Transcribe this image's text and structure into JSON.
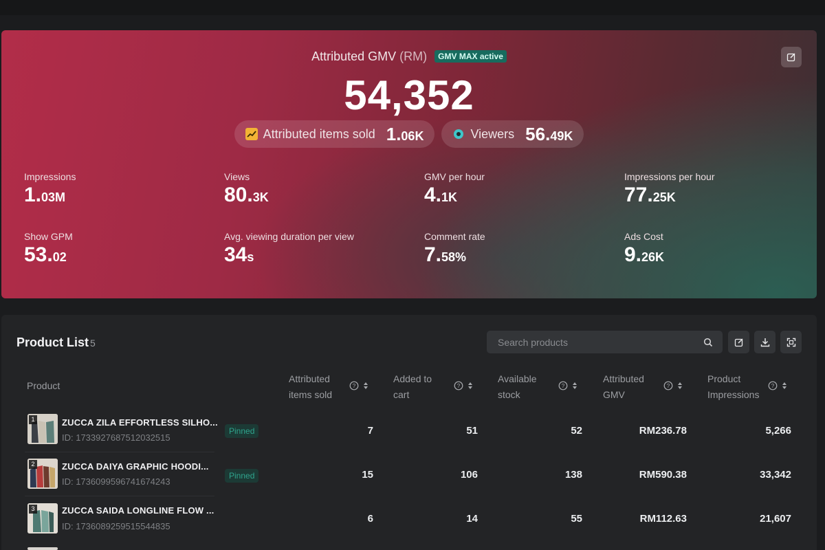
{
  "hero": {
    "title": "Attributed GMV",
    "title_unit": "(RM)",
    "badge": "GMV MAX active",
    "value": "54,352",
    "pills": [
      {
        "label": "Attributed items sold",
        "value": "1.",
        "unit": "06K",
        "icon": "trend-up-icon"
      },
      {
        "label": "Viewers",
        "value": "56.",
        "unit": "49K",
        "icon": "eye-icon"
      }
    ],
    "metrics": [
      {
        "label": "Impressions",
        "value": "1.",
        "unit": "03M"
      },
      {
        "label": "Views",
        "value": "80.",
        "unit": "3K"
      },
      {
        "label": "GMV per hour",
        "value": "4.",
        "unit": "1K"
      },
      {
        "label": "Impressions per hour",
        "value": "77.",
        "unit": "25K"
      },
      {
        "label": "Show GPM",
        "value": "53.",
        "unit": "02"
      },
      {
        "label": "Avg. viewing duration per view",
        "value": "34",
        "unit": "s"
      },
      {
        "label": "Comment rate",
        "value": "7.",
        "unit": "58%"
      },
      {
        "label": "Ads Cost",
        "value": "9.",
        "unit": "26K"
      }
    ]
  },
  "product_list": {
    "title": "Product List",
    "count": "5",
    "search_placeholder": "Search products",
    "columns": {
      "product": "Product",
      "items_sold": [
        "Attributed",
        "items sold"
      ],
      "added_to_cart": [
        "Added to",
        "cart"
      ],
      "available_stock": [
        "Available",
        "stock"
      ],
      "attributed_gmv": [
        "Attributed",
        "GMV"
      ],
      "impressions": [
        "Product",
        "Impressions"
      ]
    },
    "rows": [
      {
        "num": "1",
        "name": "ZUCCA ZILA EFFORTLESS SILHO...",
        "id": "ID: 1733927687512032515",
        "tag": "Pinned",
        "items_sold": "7",
        "added_to_cart": "51",
        "stock": "52",
        "gmv": "RM236.78",
        "impressions": "5,266"
      },
      {
        "num": "2",
        "name": "ZUCCA DAIYA GRAPHIC HOODI...",
        "id": "ID: 1736099596741674243",
        "tag": "Pinned",
        "items_sold": "15",
        "added_to_cart": "106",
        "stock": "138",
        "gmv": "RM590.38",
        "impressions": "33,342"
      },
      {
        "num": "3",
        "name": "ZUCCA SAIDA LONGLINE FLOW ...",
        "id": "ID: 1736089259515544835",
        "tag": "",
        "items_sold": "6",
        "added_to_cart": "14",
        "stock": "55",
        "gmv": "RM112.63",
        "impressions": "21,607"
      }
    ]
  },
  "colors": {
    "accent_teal": "#186b5e",
    "hero_red": "#b22d49",
    "hero_green": "#2b6054"
  }
}
